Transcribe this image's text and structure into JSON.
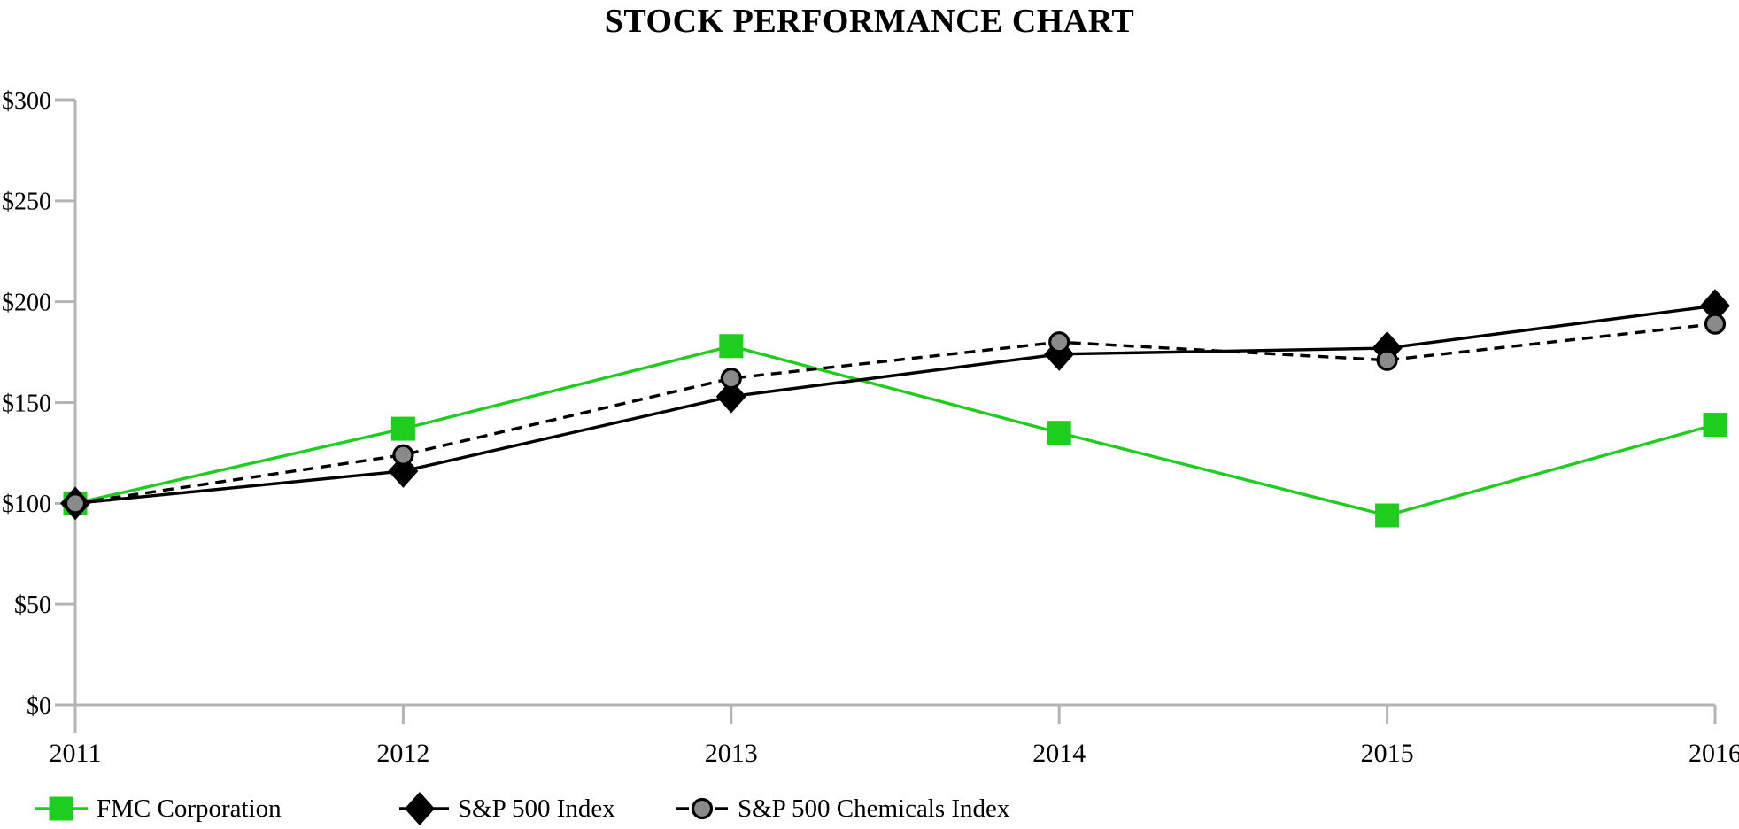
{
  "title": "STOCK PERFORMANCE CHART",
  "colors": {
    "fmc_green": "#1ecd1e",
    "series_black": "#000000",
    "chem_marker_gray": "#8a8a8a",
    "axis_gray": "#b4b4b4",
    "text": "#000000",
    "background": "#ffffff"
  },
  "chart_data": {
    "type": "line",
    "title": "STOCK PERFORMANCE CHART",
    "categories": [
      "2011",
      "2012",
      "2013",
      "2014",
      "2015",
      "2016"
    ],
    "series": [
      {
        "name": "FMC Corporation",
        "values": [
          100,
          137,
          178,
          135,
          94,
          139
        ],
        "color": "#1ecd1e",
        "marker": "square",
        "line_style": "solid"
      },
      {
        "name": "S&P 500 Index",
        "values": [
          100,
          116,
          153,
          174,
          177,
          198
        ],
        "color": "#000000",
        "marker": "diamond",
        "line_style": "solid"
      },
      {
        "name": "S&P 500 Chemicals Index",
        "values": [
          100,
          124,
          162,
          180,
          171,
          189
        ],
        "color": "#000000",
        "marker": "circle",
        "marker_fill": "#8a8a8a",
        "line_style": "dashed"
      }
    ],
    "xlabel": "",
    "ylabel": "",
    "ylim": [
      0,
      300
    ],
    "ytick_step": 50,
    "ytick_labels": [
      "$0",
      "$50",
      "$100",
      "$150",
      "$200",
      "$250",
      "$300"
    ],
    "grid": false,
    "legend_position": "bottom-left"
  },
  "legend": {
    "items": [
      {
        "label": "FMC Corporation",
        "marker": "square-solid-line"
      },
      {
        "label": "S&P 500 Index",
        "marker": "diamond-solid-line"
      },
      {
        "label": "S&P 500 Chemicals Index",
        "marker": "circle-dashed-line"
      }
    ]
  }
}
